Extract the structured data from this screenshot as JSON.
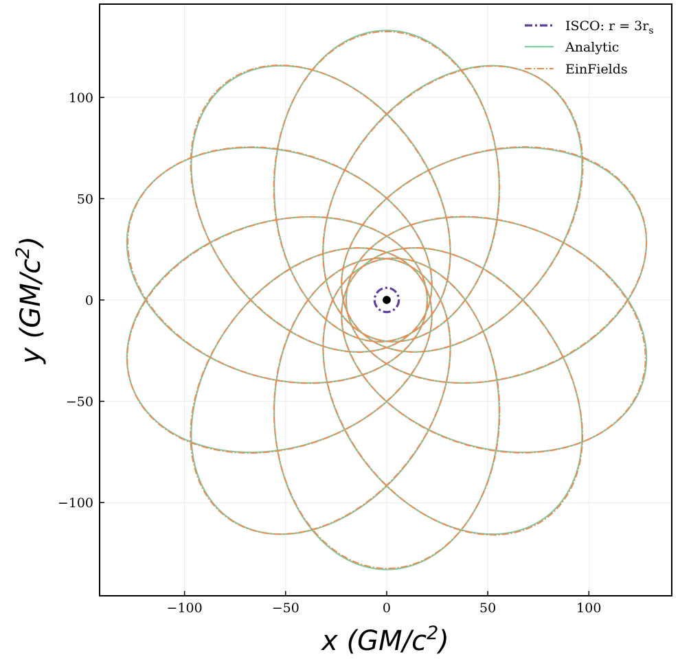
{
  "chart_data": {
    "type": "line",
    "title": "",
    "xlabel": "x (GM/c²)",
    "ylabel": "y (GM/c²)",
    "xlim": [
      -142,
      141
    ],
    "ylim": [
      -146,
      146
    ],
    "grid": true,
    "legend_position": "top-right",
    "x_ticks": [
      {
        "value": -100,
        "label": "−100"
      },
      {
        "value": -50,
        "label": "−50"
      },
      {
        "value": 0,
        "label": "0"
      },
      {
        "value": 50,
        "label": "50"
      },
      {
        "value": 100,
        "label": "100"
      }
    ],
    "y_ticks": [
      {
        "value": 100,
        "label": "100"
      },
      {
        "value": 50,
        "label": "50"
      },
      {
        "value": 0,
        "label": "0"
      },
      {
        "value": -50,
        "label": "−50"
      },
      {
        "value": -100,
        "label": "−100"
      }
    ],
    "orbit": {
      "periapsis": 20,
      "apoapsis": 133,
      "precession_per_orbit_deg": 36,
      "orbits": 10,
      "first_apoapsis_angle_deg": 90
    },
    "black_hole": {
      "x": 0,
      "y": 0,
      "radius": 2
    },
    "series": [
      {
        "name": "ISCO: r = 3rₛ",
        "type": "circle",
        "radius": 6,
        "color": "#5e3c99",
        "dash": "dashdot"
      },
      {
        "name": "Analytic",
        "type": "orbit",
        "color": "#7fc8a0",
        "dash": "solid"
      },
      {
        "name": "EinFields",
        "type": "orbit",
        "color": "#ec8a52",
        "dash": "dashdot"
      }
    ],
    "legend": {
      "isco_label": "ISCO: r = 3r",
      "isco_sub": "s",
      "analytic_label": "Analytic",
      "einfields_label": "EinFields"
    }
  },
  "axis_label_parts": {
    "x_var": "x",
    "y_var": "y",
    "unit_open": " (GM/c",
    "unit_exp": "2",
    "unit_close": ")"
  }
}
